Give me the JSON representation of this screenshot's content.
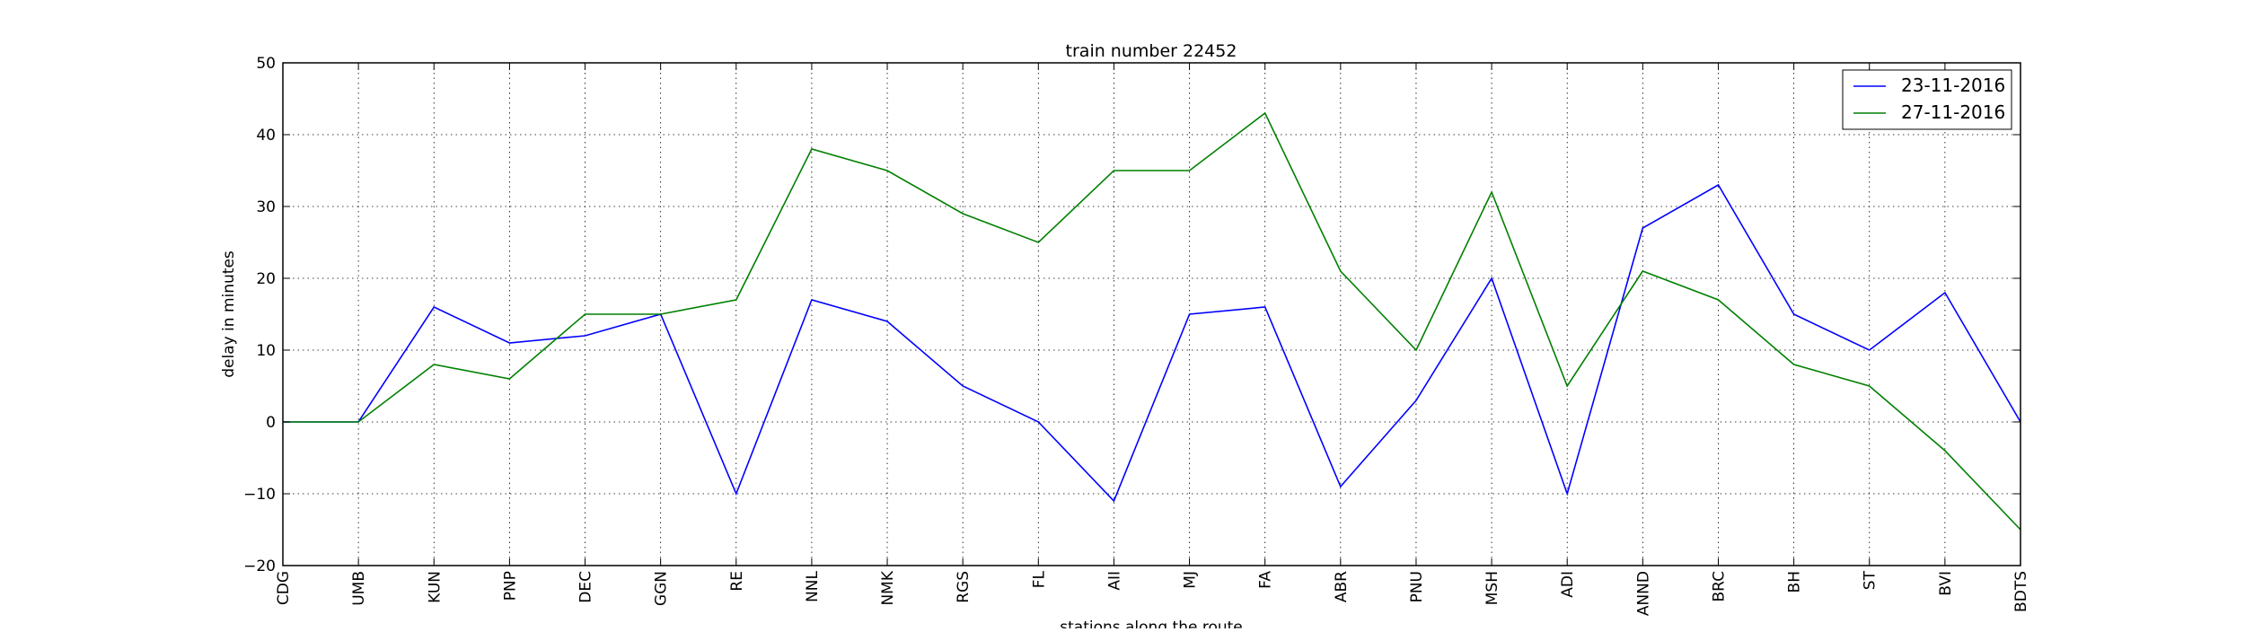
{
  "chart_data": {
    "type": "line",
    "title": "train number 22452",
    "xlabel": "stations along the route",
    "ylabel": "delay in minutes",
    "categories": [
      "CDG",
      "UMB",
      "KUN",
      "PNP",
      "DEC",
      "GGN",
      "RE",
      "NNL",
      "NMK",
      "RGS",
      "FL",
      "AII",
      "MJ",
      "FA",
      "ABR",
      "PNU",
      "MSH",
      "ADI",
      "ANND",
      "BRC",
      "BH",
      "ST",
      "BVI",
      "BDTS"
    ],
    "ylim": [
      -20,
      50
    ],
    "yticks": [
      -20,
      -10,
      0,
      10,
      20,
      30,
      40,
      50
    ],
    "yticklabels": [
      "−20",
      "−10",
      "0",
      "10",
      "20",
      "30",
      "40",
      "50"
    ],
    "grid": true,
    "legend_position": "top-right",
    "series": [
      {
        "name": "23-11-2016",
        "color": "#0000ff",
        "values": [
          0,
          0,
          16,
          11,
          12,
          15,
          -10,
          17,
          14,
          5,
          0,
          -11,
          15,
          16,
          -9,
          3,
          20,
          -10,
          27,
          33,
          15,
          10,
          18,
          0
        ]
      },
      {
        "name": "27-11-2016",
        "color": "#008000",
        "values": [
          0,
          0,
          8,
          6,
          15,
          15,
          17,
          38,
          35,
          29,
          25,
          35,
          35,
          43,
          21,
          10,
          32,
          5,
          21,
          17,
          8,
          5,
          -4,
          -15
        ]
      }
    ]
  }
}
